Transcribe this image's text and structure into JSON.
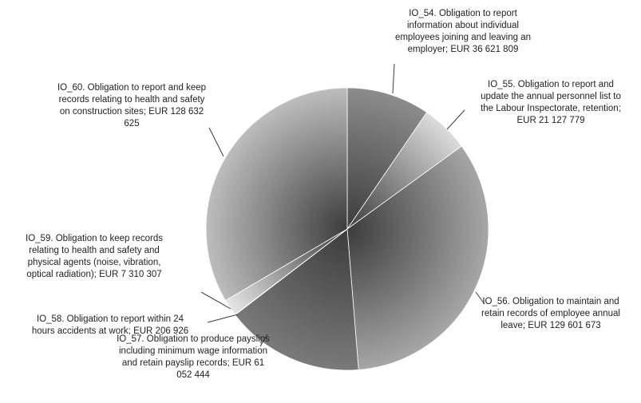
{
  "chart_data": {
    "type": "pie",
    "title": "",
    "start_angle_deg": 0,
    "direction": "clockwise",
    "slices": [
      {
        "label": "IO_54.  Obligation to report information about individual employees joining and leaving an employer;  EUR 36 621 809",
        "lines": [
          "IO_54.  Obligation to report",
          "information about individual",
          "employees joining and leaving an",
          "employer;  EUR 36 621 809"
        ],
        "value": 36621809,
        "color": "#8c8c8c"
      },
      {
        "label": "IO_55.  Obligation to report and update the annual personnel list to the Labour Inspectorate, retention;  EUR 21 127 779",
        "lines": [
          "IO_55.  Obligation to report and",
          "update the annual personnel list to",
          "the Labour Inspectorate, retention;",
          "EUR 21 127 779"
        ],
        "value": 21127779,
        "color": "#dcdcdc"
      },
      {
        "label": "IO_56.  Obligation to maintain and retain records of employee annual leave;  EUR 129 601 673",
        "lines": [
          "IO_56.  Obligation to maintain and",
          "retain records of employee annual",
          "leave;  EUR 129 601 673"
        ],
        "value": 129601673,
        "color": "#a6a6a6"
      },
      {
        "label": "IO_57.  Obligation to produce payslips including minimum wage information and retain payslip records;  EUR 61 052 444",
        "lines": [
          "IO_57.  Obligation to produce payslips",
          "including minimum wage information",
          "and retain payslip records;  EUR 61",
          "052 444"
        ],
        "value": 61052444,
        "color": "#7a7a7a"
      },
      {
        "label": "IO_58.  Obligation to report within 24 hours accidents at work;  EUR 206 926",
        "lines": [
          "IO_58.  Obligation to report within 24",
          "hours accidents at work;  EUR 206 926"
        ],
        "value": 206926,
        "color": "#4d4d4d"
      },
      {
        "label": "IO_59.  Obligation to keep records relating to health and safety and physical agents (noise, vibration, optical radiation);  EUR 7 310 307",
        "lines": [
          "IO_59.  Obligation to keep records",
          "relating to health and safety and",
          "physical agents (noise, vibration,",
          "optical radiation);  EUR 7 310 307"
        ],
        "value": 7310307,
        "color": "#e6e6e6"
      },
      {
        "label": "IO_60.  Obligation to report and keep records relating to health and safety on construction sites;  EUR 128 632 625",
        "lines": [
          "IO_60.  Obligation to report and keep",
          "records relating to health and safety",
          "on construction sites;  EUR 128 632",
          "625"
        ],
        "value": 128632625,
        "color": "#bdbdbd"
      }
    ]
  }
}
